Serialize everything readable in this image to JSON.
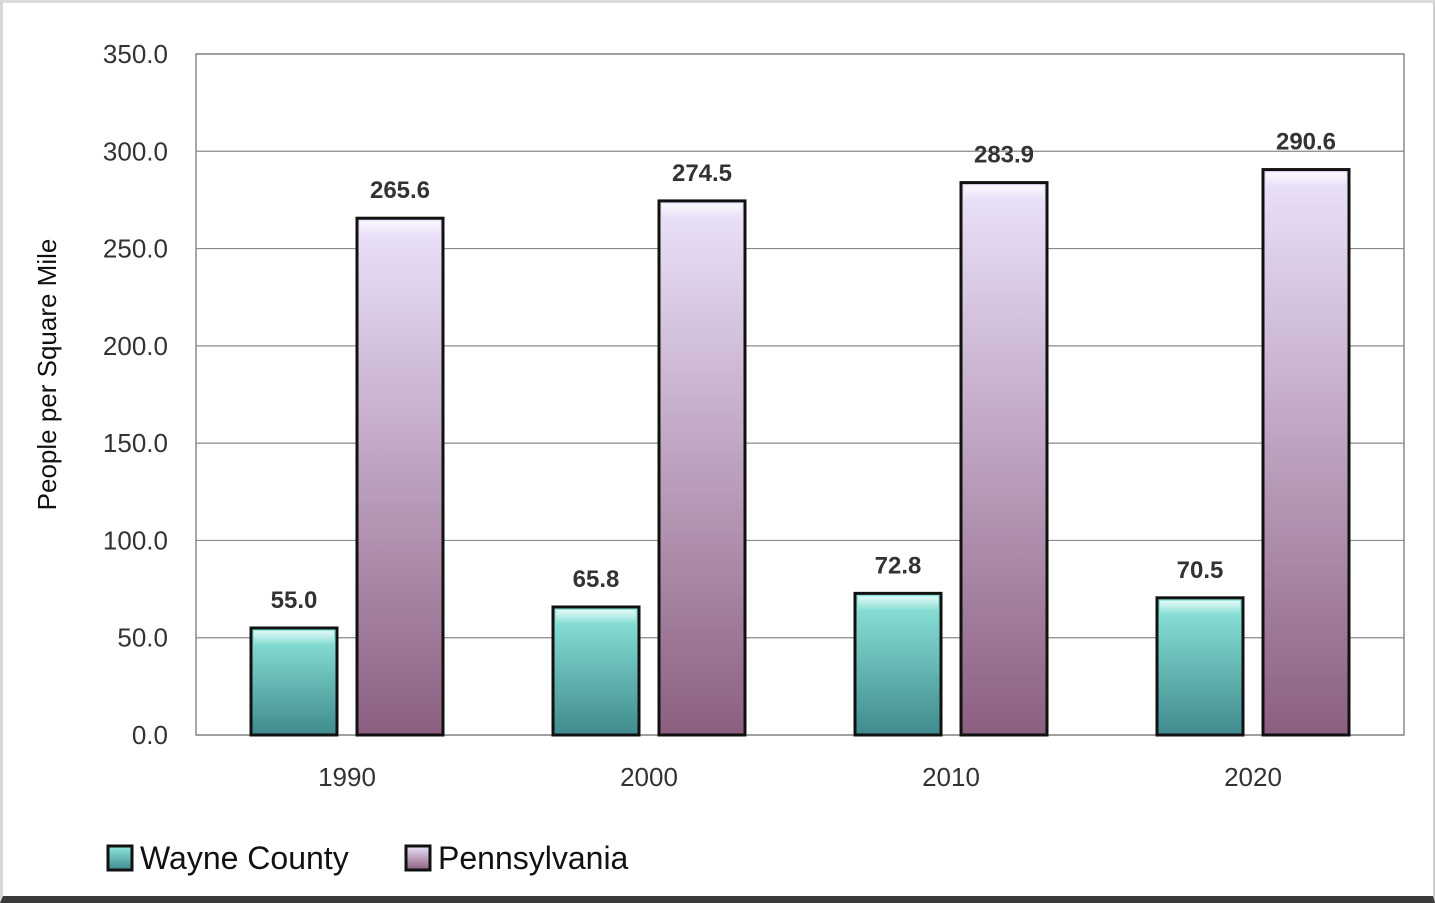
{
  "chart_data": {
    "type": "bar",
    "title": "",
    "xlabel": "",
    "ylabel": "People per Square Mile",
    "ylim": [
      0,
      350
    ],
    "yticks": [
      "0.0",
      "50.0",
      "100.0",
      "150.0",
      "200.0",
      "250.0",
      "300.0",
      "350.0"
    ],
    "categories": [
      "1990",
      "2000",
      "2010",
      "2020"
    ],
    "series": [
      {
        "name": "Wayne County",
        "values": [
          55.0,
          65.8,
          72.8,
          70.5
        ],
        "labels": [
          "55.0",
          "65.8",
          "72.8",
          "70.5"
        ],
        "color_top": "#8ee8dc",
        "color_bottom": "#3f8a8d"
      },
      {
        "name": "Pennsylvania",
        "values": [
          265.6,
          274.5,
          283.9,
          290.6
        ],
        "labels": [
          "265.6",
          "274.5",
          "283.9",
          "290.6"
        ],
        "color_top": "#ece3fb",
        "color_bottom": "#8c5f80"
      }
    ],
    "grid": true,
    "legend": "bottom-left"
  }
}
